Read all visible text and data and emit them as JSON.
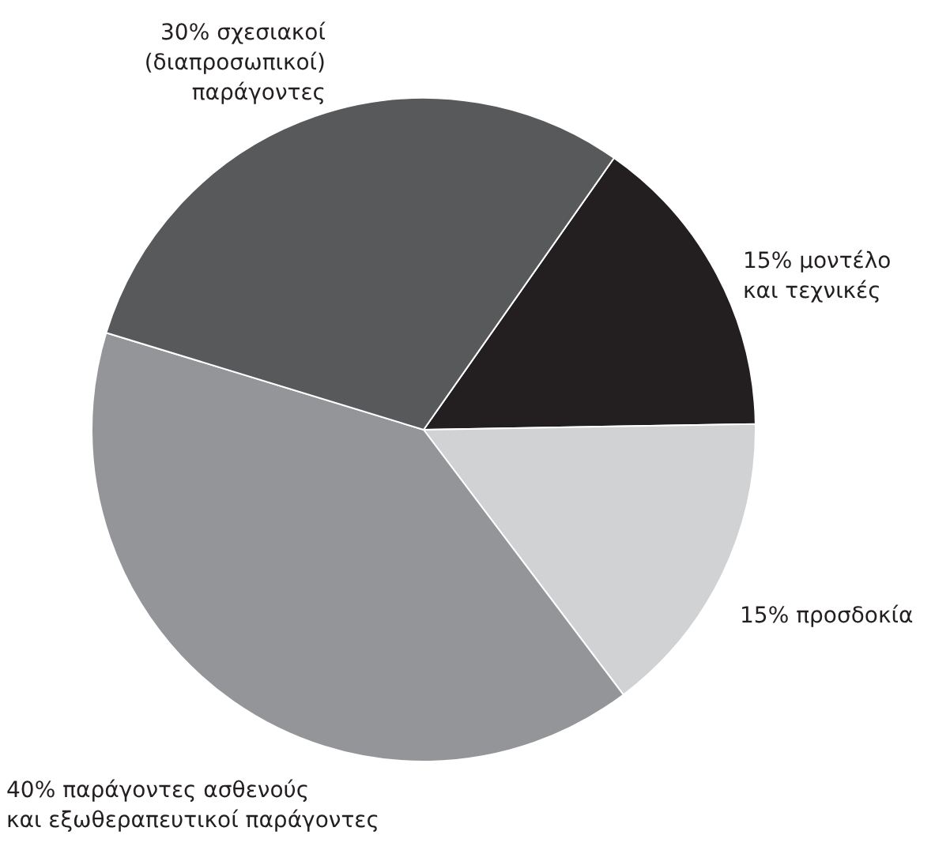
{
  "chart_data": {
    "type": "pie",
    "categories": [
      "μοντέλο\nκαι τεχνικές",
      "προσδοκία",
      "παράγοντες ασθενούς\nκαι εξωθεραπευτικοί παράγοντες",
      "σχεσιακοί\n(διαπροσωπικοί)\nπαράγοντες"
    ],
    "values": [
      15,
      15,
      40,
      30
    ],
    "value_labels": [
      "15%",
      "15%",
      "40%",
      "30%"
    ],
    "colors": [
      "#231f20",
      "#d1d2d4",
      "#939598",
      "#58595b"
    ]
  }
}
